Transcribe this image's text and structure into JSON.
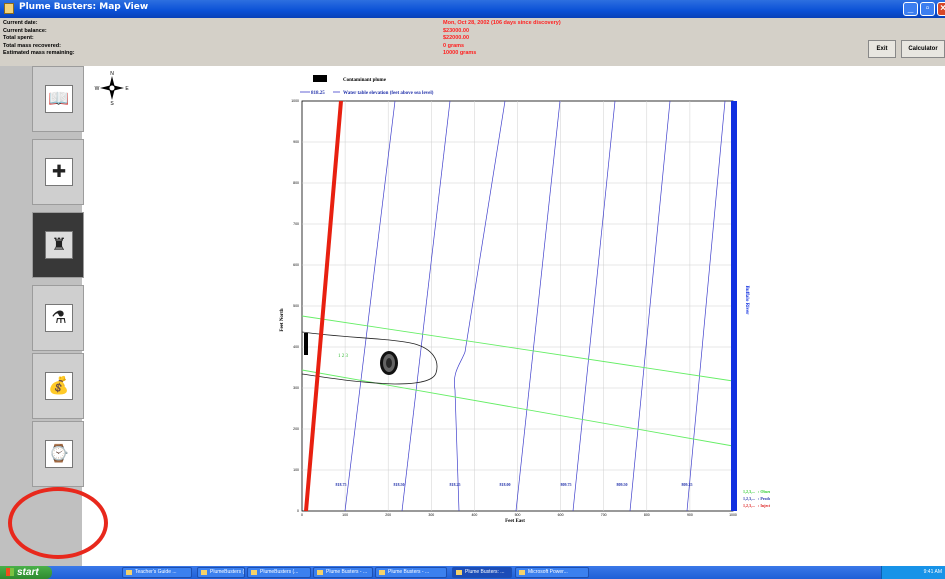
{
  "window": {
    "title": "Plume Busters: Map View"
  },
  "info": {
    "rows": [
      {
        "label": "Current date:",
        "value": "Mon, Oct 28, 2002 (106 days since discovery)"
      },
      {
        "label": "Current balance:",
        "value": "$23000.00"
      },
      {
        "label": "Total spent:",
        "value": "$22000.00"
      },
      {
        "label": "Total mass recovered:",
        "value": "0 grams"
      },
      {
        "label": "Estimated mass remaining:",
        "value": "10000 grams"
      }
    ],
    "exit_label": "Exit",
    "calculator_label": "Calculator"
  },
  "toolbar": {
    "tools": [
      {
        "icon": "book-icon",
        "glyph": "📖",
        "active": false
      },
      {
        "icon": "well-drill-icon",
        "glyph": "✚",
        "active": false
      },
      {
        "icon": "monitoring-well-icon",
        "glyph": "♜",
        "active": true
      },
      {
        "icon": "pipe-treatment-icon",
        "glyph": "⚗",
        "active": false
      },
      {
        "icon": "money-bag-icon",
        "glyph": "💰",
        "active": false
      },
      {
        "icon": "watch-icon",
        "glyph": "⌚",
        "active": false
      }
    ],
    "highlight_color": "#e8281c"
  },
  "compass": {
    "n": "N",
    "s": "S",
    "e": "E",
    "w": "W"
  },
  "map": {
    "legend_plume": "Contaminant plume",
    "legend_contour_value": "818.25",
    "legend_contour": "Water table elevation (feet above sea level)",
    "xlabel": "Feet East",
    "ylabel": "Feet North",
    "river_label": "Buffalo River",
    "x_ticks": [
      "0",
      "100",
      "200",
      "300",
      "400",
      "500",
      "600",
      "700",
      "800",
      "900",
      "1000"
    ],
    "y_ticks": [
      "0",
      "100",
      "200",
      "300",
      "400",
      "500",
      "600",
      "700",
      "800",
      "900",
      "1000"
    ],
    "contour_labels": [
      "818.75",
      "818.50",
      "818.25",
      "818.00",
      "809.75",
      "809.50",
      "809.25"
    ],
    "well_legend": [
      {
        "symbol": "1,2,3,...",
        "text": ": Observation wells",
        "color": "#33cc33"
      },
      {
        "symbol": "1,2,3,...",
        "text": ": Production wells",
        "color": "#2233aa"
      },
      {
        "symbol": "1,2,3,...",
        "text": ": Injection wells",
        "color": "#dd2222"
      }
    ],
    "observation_wells": "1 2 3",
    "contour_color": "#4040cc",
    "river_color": "#1030e0",
    "boundary_color": "#e82010",
    "observation_color": "#66ee66"
  },
  "taskbar": {
    "start_label": "start",
    "tasks": [
      {
        "label": "Teacher's Guide ...",
        "active": false
      },
      {
        "label": "PlumeBusters (H...",
        "active": false
      },
      {
        "label": "PlumeBusters (...",
        "active": false
      },
      {
        "label": "Plume Busters - ...",
        "active": false
      },
      {
        "label": "Plume Busters - ...",
        "active": false
      },
      {
        "label": "Plume Busters: ...",
        "active": true
      },
      {
        "label": "Microsoft Power...",
        "active": false
      }
    ],
    "clock": "9:41 AM"
  }
}
